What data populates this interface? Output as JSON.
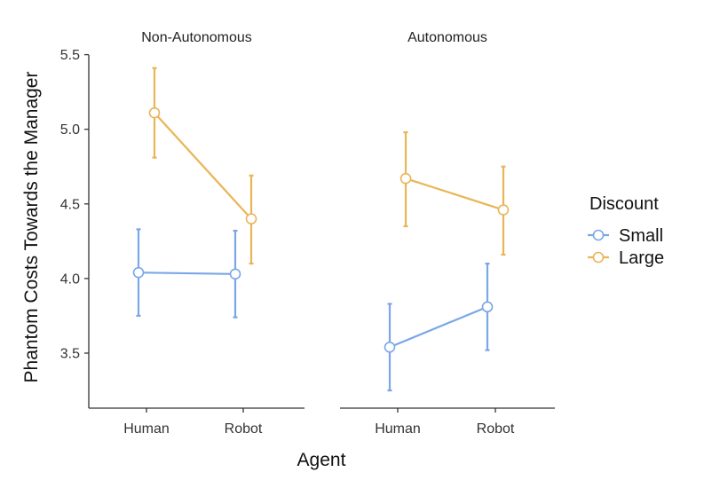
{
  "chart_data": {
    "type": "line",
    "xlabel": "Agent",
    "ylabel": "Phantom Costs Towards the Manager",
    "ylim": [
      3.2,
      5.55
    ],
    "yticks": [
      3.5,
      4.0,
      4.5,
      5.0,
      5.5
    ],
    "ytick_labels": [
      "3.5",
      "4.0",
      "4.5",
      "5.0",
      "5.5"
    ],
    "categories": [
      "Human",
      "Robot"
    ],
    "grid": false,
    "legend": {
      "title": "Discount",
      "placement": "right",
      "entries": [
        "Small",
        "Large"
      ]
    },
    "colors": {
      "Small": "#7ba7e6",
      "Large": "#e9b556"
    },
    "facets": [
      {
        "title": "Non-Autonomous",
        "series": [
          {
            "name": "Small",
            "values": [
              4.04,
              4.03
            ],
            "lower": [
              3.75,
              3.74
            ],
            "upper": [
              4.33,
              4.32
            ]
          },
          {
            "name": "Large",
            "values": [
              5.11,
              4.4
            ],
            "lower": [
              4.81,
              4.1
            ],
            "upper": [
              5.41,
              4.69
            ]
          }
        ]
      },
      {
        "title": "Autonomous",
        "series": [
          {
            "name": "Small",
            "values": [
              3.54,
              3.81
            ],
            "lower": [
              3.25,
              3.52
            ],
            "upper": [
              3.83,
              4.1
            ]
          },
          {
            "name": "Large",
            "values": [
              4.67,
              4.46
            ],
            "lower": [
              4.35,
              4.16
            ],
            "upper": [
              4.98,
              4.75
            ]
          }
        ]
      }
    ]
  }
}
